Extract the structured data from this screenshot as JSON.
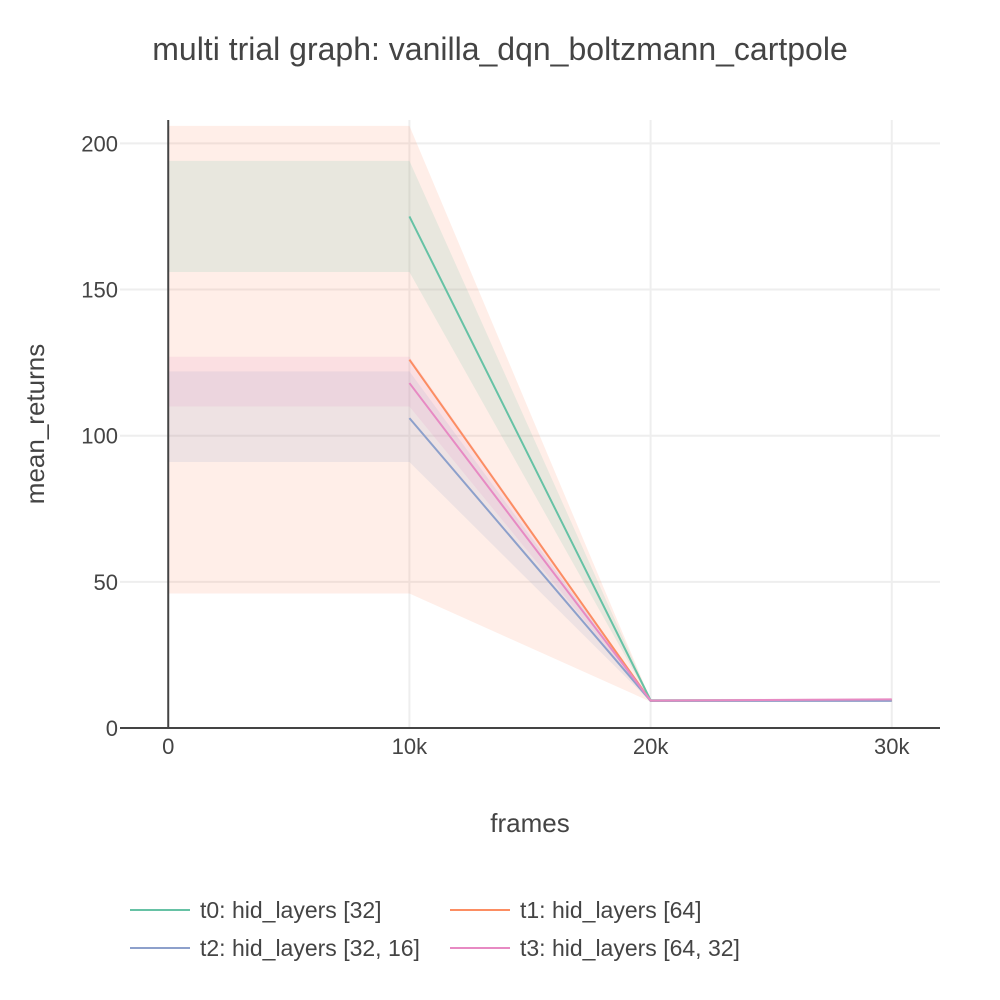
{
  "chart_data": {
    "type": "line",
    "title": "multi trial graph: vanilla_dqn_boltzmann_cartpole",
    "xlabel": "frames",
    "ylabel": "mean_returns",
    "xlim": [
      -2000,
      32000
    ],
    "ylim": [
      0,
      208
    ],
    "x_ticks": [
      {
        "value": 0,
        "label": "0"
      },
      {
        "value": 10000,
        "label": "10k"
      },
      {
        "value": 20000,
        "label": "20k"
      },
      {
        "value": 30000,
        "label": "30k"
      }
    ],
    "y_ticks": [
      {
        "value": 0,
        "label": "0"
      },
      {
        "value": 50,
        "label": "50"
      },
      {
        "value": 100,
        "label": "100"
      },
      {
        "value": 150,
        "label": "150"
      },
      {
        "value": 200,
        "label": "200"
      }
    ],
    "grid": true,
    "legend_position": "bottom",
    "series": [
      {
        "name": "t0: hid_layers [32]",
        "color": "#66c2a5",
        "band_color": "rgba(102,194,165,0.15)",
        "x": [
          10000,
          20000,
          30000
        ],
        "y": [
          175,
          9.5,
          9.5
        ],
        "band_x": [
          0,
          10000,
          20000,
          30000
        ],
        "band_upper": [
          194,
          194,
          9.8,
          9.9
        ],
        "band_lower": [
          156,
          156,
          9.2,
          9.2
        ]
      },
      {
        "name": "t1: hid_layers [64]",
        "color": "#fc8d62",
        "band_color": "rgba(252,141,98,0.15)",
        "x": [
          10000,
          20000,
          30000
        ],
        "y": [
          126,
          9.3,
          9.4
        ],
        "band_x": [
          0,
          10000,
          20000,
          30000
        ],
        "band_upper": [
          206,
          206,
          9.8,
          9.9
        ],
        "band_lower": [
          46,
          46,
          9,
          9
        ]
      },
      {
        "name": "t2: hid_layers [32, 16]",
        "color": "#8da0cb",
        "band_color": "rgba(141,160,203,0.15)",
        "x": [
          10000,
          20000,
          30000
        ],
        "y": [
          106,
          9.3,
          9.3
        ],
        "band_x": [
          0,
          10000,
          20000,
          30000
        ],
        "band_upper": [
          122,
          122,
          9.7,
          9.7
        ],
        "band_lower": [
          91,
          91,
          9,
          9
        ]
      },
      {
        "name": "t3: hid_layers [64, 32]",
        "color": "#e78ac3",
        "band_color": "rgba(231,138,195,0.15)",
        "x": [
          10000,
          20000,
          30000
        ],
        "y": [
          118,
          9.4,
          9.8
        ],
        "band_x": [
          0,
          10000,
          20000,
          30000
        ],
        "band_upper": [
          127,
          127,
          9.8,
          10.2
        ],
        "band_lower": [
          110,
          110,
          9.1,
          9.3
        ]
      }
    ]
  }
}
